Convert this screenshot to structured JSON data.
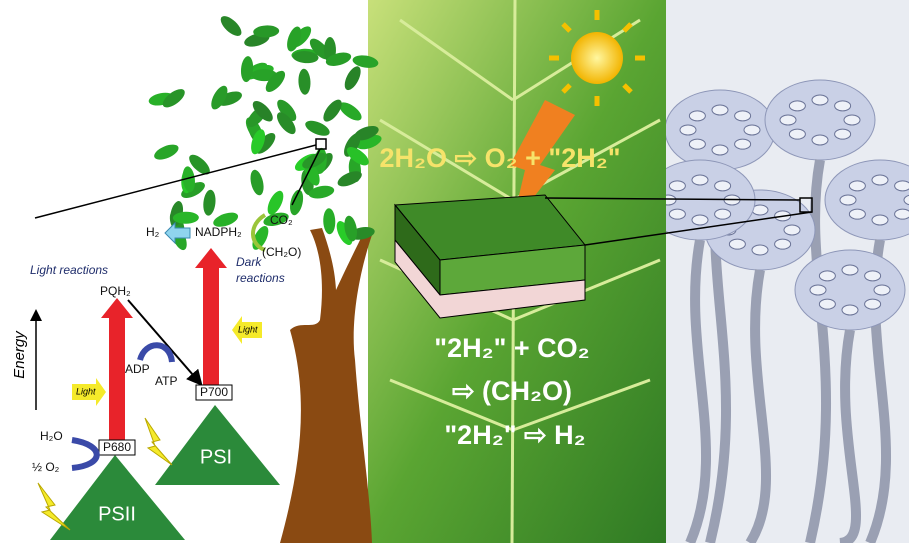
{
  "diagram": {
    "light_reactions": "Light reactions",
    "energy": "Energy",
    "pqh2": "PQH₂",
    "light_1": "Light",
    "light_2": "Light",
    "adp": "ADP",
    "atp": "ATP",
    "p700": "P700",
    "p680": "P680",
    "h2o": "H₂O",
    "half_o2": "½ O₂",
    "psii": "PSII",
    "psi": "PSI",
    "h2": "H₂",
    "nadph2": "NADPH₂",
    "co2": "CO₂",
    "ch2o": "(CH₂O)",
    "dark_1": "Dark",
    "dark_2": "reactions",
    "equation_1": "2H₂O ⇨ O₂ + \"2H₂\"",
    "equation_2": "\"2H₂\" + CO₂",
    "equation_3": "⇨ (CH₂O)",
    "equation_4": "\"2H₂\" ⇨ H₂"
  }
}
